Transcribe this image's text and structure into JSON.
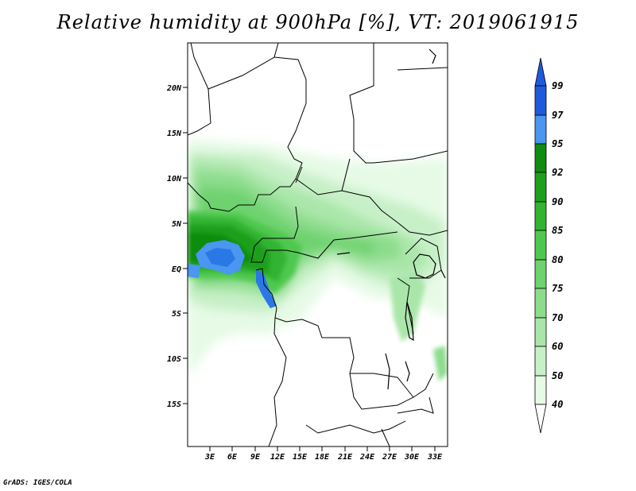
{
  "title": "Relative humidity at 900hPa [%], VT: 2019061915",
  "credit": "GrADS: IGES/COLA",
  "map": {
    "lat_labels": [
      "20N",
      "15N",
      "10N",
      "5N",
      "EQ",
      "5S",
      "10S",
      "15S"
    ],
    "lon_labels": [
      "3E",
      "6E",
      "9E",
      "12E",
      "15E",
      "18E",
      "21E",
      "24E",
      "27E",
      "30E",
      "33E"
    ]
  },
  "colorbar": {
    "labels": [
      "99",
      "97",
      "95",
      "92",
      "90",
      "85",
      "80",
      "75",
      "70",
      "60",
      "50",
      "40"
    ],
    "colors": [
      "#1e5adc",
      "#2a78e6",
      "#4a96f0",
      "#108c10",
      "#1ea01e",
      "#32b432",
      "#50c850",
      "#6ed26e",
      "#8cdc8c",
      "#aae6aa",
      "#c8f0c8",
      "#e6fae6"
    ]
  }
}
